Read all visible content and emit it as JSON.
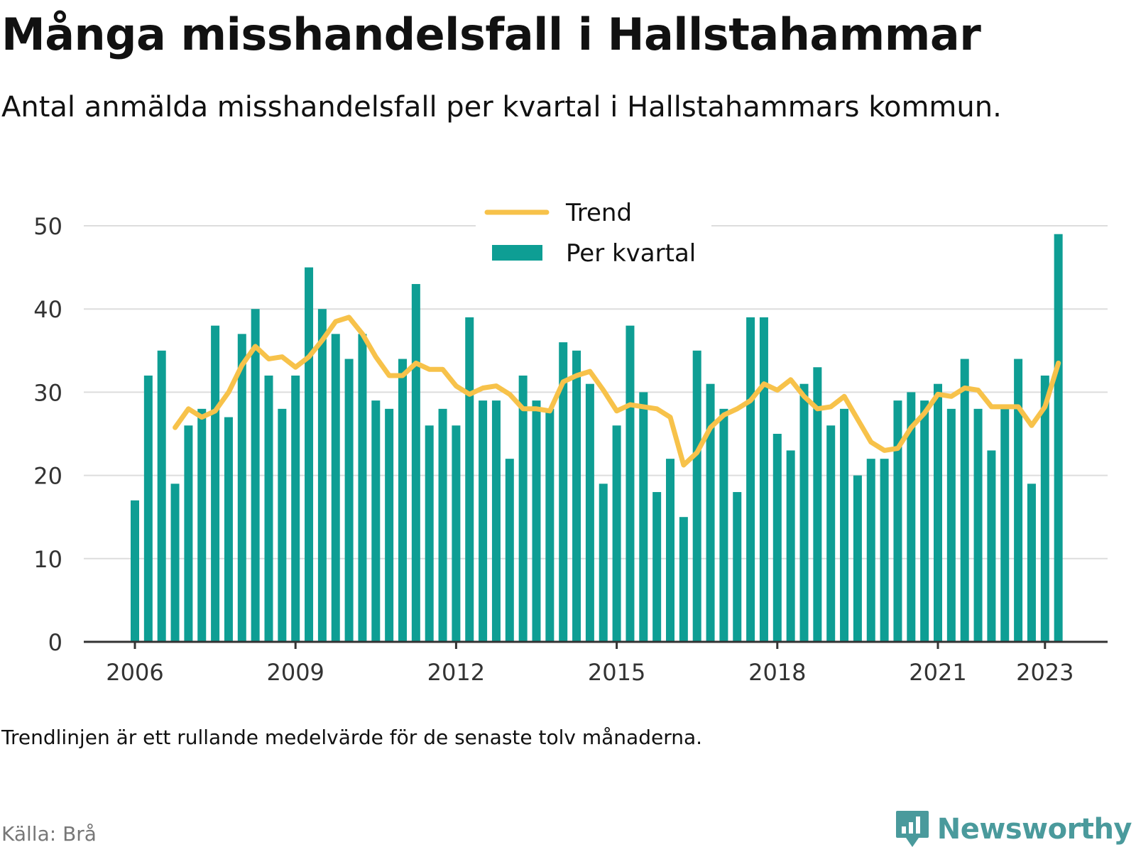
{
  "title": "Många misshandelsfall i Hallstahammar",
  "subtitle": "Antal anmälda misshandelsfall per kvartal i Hallstahammars kommun.",
  "note": "Trendlinjen är ett rullande medelvärde för de senaste tolv månaderna.",
  "source": "Källa: Brå",
  "brand": {
    "name": "Newsworthy",
    "icon": "newsworthy-logo-icon",
    "color": "#4a9a9c"
  },
  "colors": {
    "bar": "#0e9e94",
    "trend": "#f7c24a",
    "grid": "#dddddd",
    "axis": "#333333"
  },
  "chart_data": {
    "type": "bar",
    "legend": [
      "Trend",
      "Per kvartal"
    ],
    "legend_position": "top-center",
    "grid": true,
    "ylim": [
      0,
      50
    ],
    "y_ticks": [
      0,
      10,
      20,
      30,
      40,
      50
    ],
    "x_ticks": [
      "2006",
      "2009",
      "2012",
      "2015",
      "2018",
      "2021",
      "2023"
    ],
    "series": [
      {
        "name": "Per kvartal",
        "type": "bar",
        "start": "2006 Q1",
        "values": [
          17,
          32,
          35,
          19,
          26,
          28,
          38,
          27,
          37,
          40,
          32,
          28,
          32,
          45,
          40,
          37,
          34,
          37,
          29,
          28,
          34,
          43,
          26,
          28,
          26,
          39,
          29,
          29,
          22,
          32,
          29,
          28,
          36,
          35,
          31,
          19,
          26,
          38,
          30,
          18,
          22,
          15,
          35,
          31,
          28,
          18,
          39,
          39,
          25,
          23,
          31,
          33,
          26,
          28,
          20,
          22,
          22,
          29,
          30,
          29,
          31,
          28,
          34,
          28,
          23,
          28,
          34,
          19,
          32,
          49
        ]
      },
      {
        "name": "Trend",
        "type": "line",
        "start": "2006 Q4",
        "values": [
          25.75,
          28,
          27,
          27.75,
          30,
          33.25,
          35.5,
          34,
          34.25,
          33,
          34.25,
          36.25,
          38.5,
          39,
          37,
          34.25,
          32,
          32,
          33.5,
          32.75,
          32.75,
          30.75,
          29.75,
          30.5,
          30.75,
          29.75,
          28,
          28,
          27.75,
          31.25,
          32,
          32.5,
          30.25,
          27.75,
          28.5,
          28.25,
          28,
          27,
          21.25,
          22.75,
          25.75,
          27.25,
          28,
          29,
          31,
          30.25,
          31.5,
          29.5,
          28,
          28.25,
          29.5,
          26.75,
          24,
          23,
          23.25,
          25.75,
          27.5,
          29.75,
          29.5,
          30.5,
          30.25,
          28.25,
          28.25,
          28.25,
          26,
          28.25,
          33.5
        ]
      }
    ]
  }
}
